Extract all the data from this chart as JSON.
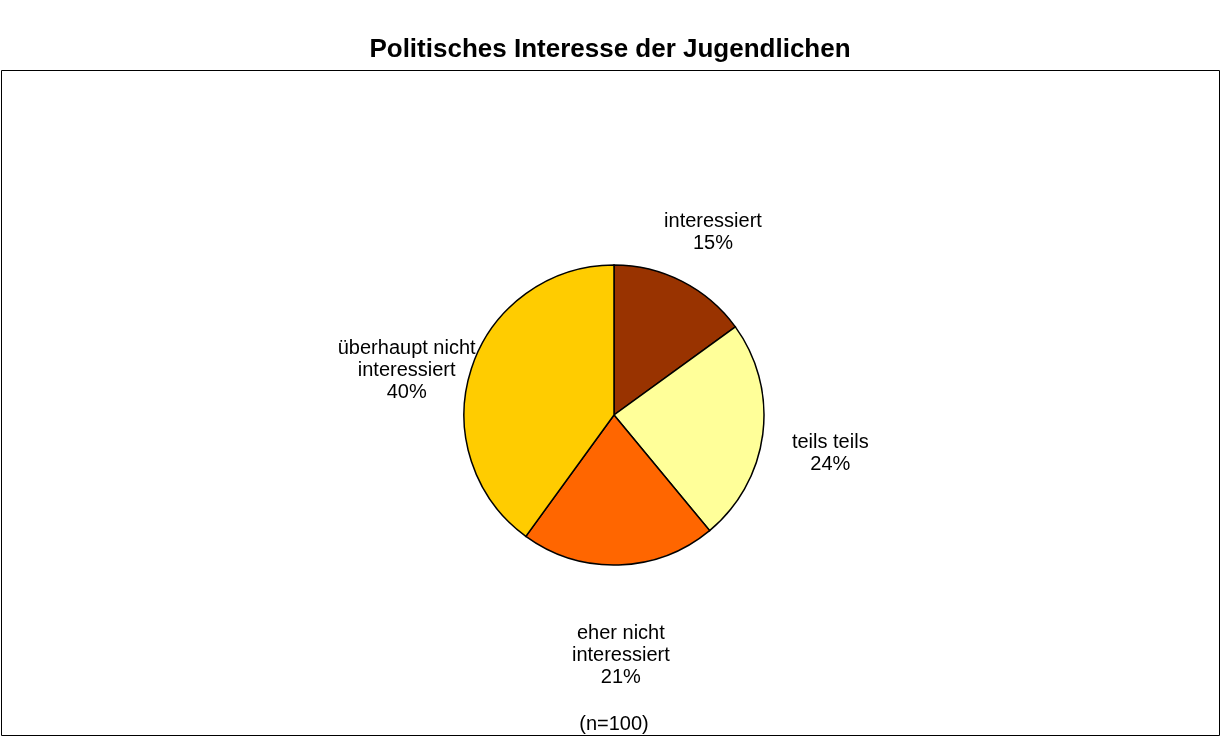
{
  "chart_data": {
    "type": "pie",
    "title": "Politisches Interesse der Jugendlichen",
    "categories": [
      "interessiert",
      "teils teils",
      "eher nicht interessiert",
      "überhaupt nicht interessiert"
    ],
    "values": [
      15,
      24,
      21,
      40
    ],
    "value_labels": [
      "15%",
      "24%",
      "21%",
      "40%"
    ],
    "colors": [
      "#993300",
      "#ffff99",
      "#ff6600",
      "#ffcc00"
    ],
    "annotations": [
      "(n=100)"
    ]
  }
}
